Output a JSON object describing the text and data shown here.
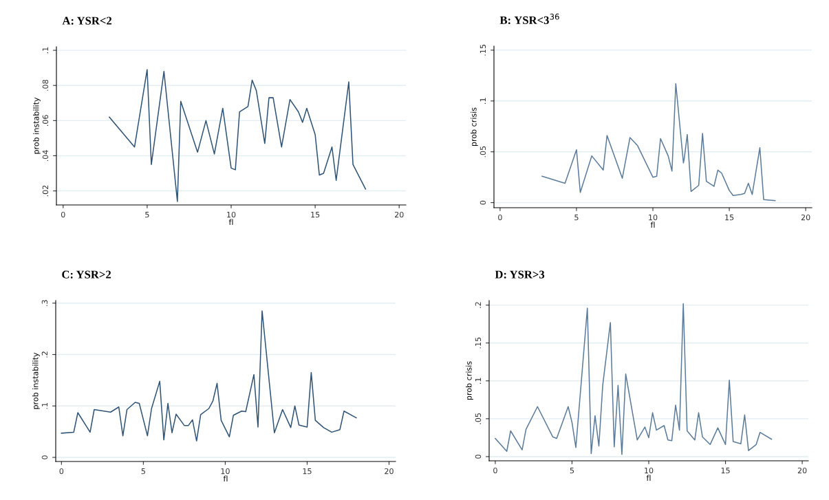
{
  "chart_data": [
    {
      "type": "line",
      "title": "A: YSR<2",
      "xlabel": "fl",
      "ylabel": "prob instability",
      "grid": "y",
      "legend": false,
      "xlim": [
        -0.4,
        20.4
      ],
      "ylim": [
        0.012,
        0.102
      ],
      "xticks": [
        0,
        5,
        10,
        15,
        20
      ],
      "yticks": [
        {
          "value": 0.02,
          "label": ".02"
        },
        {
          "value": 0.04,
          "label": ".04"
        },
        {
          "value": 0.06,
          "label": ".06"
        },
        {
          "value": 0.08,
          "label": ".08"
        },
        {
          "value": 0.1,
          "label": ".1"
        }
      ],
      "series": [
        {
          "color": "#2e5375",
          "x": [
            2.75,
            4.25,
            5.0,
            5.25,
            6.0,
            6.8,
            7.0,
            8.0,
            8.5,
            9.0,
            9.5,
            10.0,
            10.25,
            10.5,
            11.0,
            11.25,
            11.5,
            12.0,
            12.25,
            12.5,
            13.0,
            13.5,
            14.0,
            14.25,
            14.5,
            15.0,
            15.25,
            15.5,
            16.0,
            16.25,
            17.0,
            17.25,
            18.0
          ],
          "values": [
            0.062,
            0.045,
            0.089,
            0.035,
            0.088,
            0.014,
            0.071,
            0.042,
            0.06,
            0.041,
            0.067,
            0.033,
            0.032,
            0.065,
            0.068,
            0.083,
            0.077,
            0.047,
            0.073,
            0.073,
            0.045,
            0.072,
            0.065,
            0.059,
            0.067,
            0.052,
            0.029,
            0.03,
            0.045,
            0.026,
            0.082,
            0.035,
            0.021
          ]
        }
      ]
    },
    {
      "type": "line",
      "title": "B: YSR<3$^{36}$",
      "xlabel": "fl",
      "ylabel": "prob crisis",
      "grid": "y",
      "legend": false,
      "xlim": [
        -0.4,
        20.4
      ],
      "ylim": [
        -0.005,
        0.154
      ],
      "xticks": [
        0,
        5,
        10,
        15,
        20
      ],
      "yticks": [
        0,
        {
          "value": 0.05,
          "label": ".05"
        },
        {
          "value": 0.1,
          "label": ".1"
        },
        {
          "value": 0.15,
          "label": ".15"
        }
      ],
      "series": [
        {
          "color": "#5b7b9a",
          "x": [
            2.75,
            4.25,
            5.0,
            5.25,
            6.0,
            6.75,
            7.0,
            8.0,
            8.5,
            9.0,
            10.0,
            10.25,
            10.5,
            11.0,
            11.25,
            11.5,
            12.0,
            12.05,
            12.25,
            12.5,
            13.0,
            13.25,
            13.5,
            14.0,
            14.25,
            14.5,
            15.0,
            15.25,
            15.75,
            16.0,
            16.25,
            16.5,
            17.0,
            17.25,
            18.0
          ],
          "values": [
            0.026,
            0.019,
            0.052,
            0.01,
            0.046,
            0.032,
            0.066,
            0.024,
            0.064,
            0.056,
            0.025,
            0.026,
            0.063,
            0.046,
            0.031,
            0.117,
            0.039,
            0.043,
            0.067,
            0.011,
            0.017,
            0.068,
            0.021,
            0.016,
            0.032,
            0.029,
            0.012,
            0.007,
            0.008,
            0.009,
            0.019,
            0.008,
            0.054,
            0.003,
            0.002
          ]
        }
      ]
    },
    {
      "type": "line",
      "title": "C: YSR>2",
      "xlabel": "fl",
      "ylabel": "prob instability",
      "grid": "y",
      "legend": false,
      "xlim": [
        -0.35,
        20.4
      ],
      "ylim": [
        -0.008,
        0.305
      ],
      "xticks": [
        0,
        5,
        10,
        15,
        20
      ],
      "yticks": [
        0,
        {
          "value": 0.1,
          "label": ".1"
        },
        {
          "value": 0.2,
          "label": ".2"
        },
        {
          "value": 0.3,
          "label": ".3"
        }
      ],
      "series": [
        {
          "color": "#2e5375",
          "x": [
            0,
            0.75,
            1.0,
            1.75,
            2.0,
            3.0,
            3.5,
            3.75,
            4.0,
            4.5,
            4.75,
            5.25,
            5.5,
            6.0,
            6.25,
            6.5,
            6.75,
            7.0,
            7.5,
            7.75,
            8.0,
            8.25,
            8.5,
            9.0,
            9.25,
            9.5,
            9.75,
            10.25,
            10.5,
            11.0,
            11.25,
            11.75,
            12.0,
            12.25,
            13.0,
            13.5,
            14.0,
            14.25,
            14.5,
            15.0,
            15.25,
            15.5,
            16.0,
            16.5,
            17.0,
            17.25,
            18.0
          ],
          "values": [
            0.047,
            0.049,
            0.087,
            0.049,
            0.093,
            0.088,
            0.098,
            0.042,
            0.093,
            0.107,
            0.105,
            0.042,
            0.095,
            0.148,
            0.034,
            0.105,
            0.048,
            0.084,
            0.062,
            0.062,
            0.073,
            0.032,
            0.083,
            0.095,
            0.11,
            0.144,
            0.072,
            0.04,
            0.082,
            0.09,
            0.089,
            0.161,
            0.059,
            0.285,
            0.048,
            0.093,
            0.058,
            0.1,
            0.063,
            0.059,
            0.165,
            0.072,
            0.058,
            0.049,
            0.054,
            0.09,
            0.077
          ]
        }
      ]
    },
    {
      "type": "line",
      "title": "D: YSR>3",
      "xlabel": "fl",
      "ylabel": "prob crisis",
      "grid": "y",
      "legend": false,
      "xlim": [
        -0.4,
        20.4
      ],
      "ylim": [
        -0.0055,
        0.206
      ],
      "xticks": [
        0,
        5,
        10,
        15,
        20
      ],
      "yticks": [
        0,
        {
          "value": 0.05,
          "label": ".05"
        },
        {
          "value": 0.1,
          "label": ".1"
        },
        {
          "value": 0.15,
          "label": ".15"
        },
        {
          "value": 0.2,
          "label": ".2"
        }
      ],
      "series": [
        {
          "color": "#5b7b9a",
          "x": [
            0,
            0.75,
            1.0,
            1.75,
            2.0,
            2.75,
            3.75,
            4.0,
            4.75,
            5.0,
            5.25,
            6.0,
            6.25,
            6.5,
            6.75,
            7.0,
            7.5,
            7.75,
            8.0,
            8.25,
            8.5,
            9.25,
            9.75,
            10.0,
            10.25,
            10.5,
            11.0,
            11.25,
            11.5,
            11.75,
            12.0,
            12.25,
            12.5,
            13.0,
            13.25,
            13.5,
            14.0,
            14.5,
            15.0,
            15.25,
            15.5,
            16.0,
            16.25,
            16.5,
            17.0,
            17.25,
            18.0
          ],
          "values": [
            0.024,
            0.007,
            0.034,
            0.009,
            0.036,
            0.066,
            0.026,
            0.024,
            0.066,
            0.045,
            0.012,
            0.196,
            0.004,
            0.054,
            0.014,
            0.094,
            0.177,
            0.013,
            0.094,
            0.003,
            0.109,
            0.022,
            0.039,
            0.025,
            0.058,
            0.035,
            0.041,
            0.022,
            0.021,
            0.068,
            0.035,
            0.202,
            0.034,
            0.022,
            0.058,
            0.026,
            0.016,
            0.038,
            0.016,
            0.101,
            0.02,
            0.017,
            0.055,
            0.008,
            0.016,
            0.032,
            0.023
          ]
        }
      ]
    }
  ]
}
